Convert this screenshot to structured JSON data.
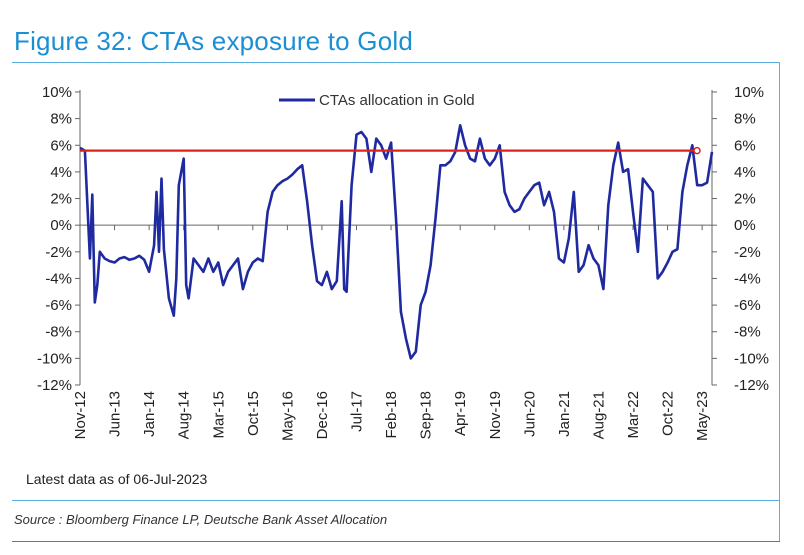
{
  "title": "Figure 32: CTAs exposure to Gold",
  "footnote": "Latest data as of 06-Jul-2023",
  "source": "Source : Bloomberg Finance LP, Deutsche Bank Asset Allocation",
  "colors": {
    "title": "#1b8fd3",
    "series": "#1f2aa0",
    "reference_line": "#e0201b",
    "rule": "#5aaee0"
  },
  "chart_data": {
    "type": "line",
    "ylim": [
      -12,
      10
    ],
    "y_ticks": [
      "10%",
      "8%",
      "6%",
      "4%",
      "2%",
      "0%",
      "-2%",
      "-4%",
      "-6%",
      "-8%",
      "-10%",
      "-12%"
    ],
    "y_tick_values": [
      10,
      8,
      6,
      4,
      2,
      0,
      -2,
      -4,
      -6,
      -8,
      -10,
      -12
    ],
    "y_axis_right": true,
    "x_tick_labels": [
      "Nov-12",
      "Jun-13",
      "Jan-14",
      "Aug-14",
      "Mar-15",
      "Oct-15",
      "May-16",
      "Dec-16",
      "Jul-17",
      "Feb-18",
      "Sep-18",
      "Apr-19",
      "Nov-19",
      "Jun-20",
      "Jan-21",
      "Aug-21",
      "Mar-22",
      "Oct-22",
      "May-23"
    ],
    "x_range": [
      "2012-11",
      "2023-07"
    ],
    "legend": {
      "position": "top-center"
    },
    "grid": false,
    "series": [
      {
        "name": "CTAs allocation in Gold",
        "x": [
          "2012-11",
          "2012-12",
          "2013-01",
          "2013-01",
          "2013-02",
          "2013-02",
          "2013-03",
          "2013-04",
          "2013-05",
          "2013-06",
          "2013-07",
          "2013-08",
          "2013-09",
          "2013-10",
          "2013-11",
          "2013-12",
          "2014-01",
          "2014-02",
          "2014-02",
          "2014-03",
          "2014-03",
          "2014-04",
          "2014-05",
          "2014-06",
          "2014-06",
          "2014-07",
          "2014-08",
          "2014-08",
          "2014-09",
          "2014-10",
          "2014-11",
          "2014-12",
          "2015-01",
          "2015-02",
          "2015-03",
          "2015-04",
          "2015-05",
          "2015-06",
          "2015-07",
          "2015-08",
          "2015-09",
          "2015-10",
          "2015-11",
          "2015-12",
          "2016-01",
          "2016-02",
          "2016-03",
          "2016-04",
          "2016-05",
          "2016-06",
          "2016-07",
          "2016-08",
          "2016-09",
          "2016-10",
          "2016-11",
          "2016-12",
          "2017-01",
          "2017-02",
          "2017-03",
          "2017-04",
          "2017-04",
          "2017-05",
          "2017-06",
          "2017-07",
          "2017-08",
          "2017-09",
          "2017-10",
          "2017-11",
          "2017-12",
          "2018-01",
          "2018-02",
          "2018-03",
          "2018-04",
          "2018-05",
          "2018-06",
          "2018-07",
          "2018-08",
          "2018-09",
          "2018-10",
          "2018-11",
          "2018-12",
          "2019-01",
          "2019-02",
          "2019-03",
          "2019-04",
          "2019-05",
          "2019-06",
          "2019-07",
          "2019-08",
          "2019-09",
          "2019-10",
          "2019-11",
          "2019-12",
          "2020-01",
          "2020-02",
          "2020-03",
          "2020-04",
          "2020-05",
          "2020-06",
          "2020-07",
          "2020-08",
          "2020-09",
          "2020-10",
          "2020-11",
          "2020-12",
          "2021-01",
          "2021-02",
          "2021-03",
          "2021-04",
          "2021-05",
          "2021-06",
          "2021-07",
          "2021-08",
          "2021-09",
          "2021-10",
          "2021-11",
          "2021-12",
          "2022-01",
          "2022-02",
          "2022-03",
          "2022-04",
          "2022-05",
          "2022-06",
          "2022-07",
          "2022-08",
          "2022-09",
          "2022-10",
          "2022-11",
          "2022-12",
          "2023-01",
          "2023-02",
          "2023-03",
          "2023-04",
          "2023-05",
          "2023-06",
          "2023-07"
        ],
        "values": [
          5.8,
          5.6,
          -2.5,
          2.3,
          -5.8,
          -4.5,
          -2.0,
          -2.5,
          -2.7,
          -2.8,
          -2.5,
          -2.4,
          -2.6,
          -2.5,
          -2.3,
          -2.6,
          -3.5,
          -1.5,
          2.5,
          -2.0,
          3.5,
          -1.8,
          -5.5,
          -6.8,
          -4.0,
          3.0,
          5.0,
          -4.5,
          -5.5,
          -2.5,
          -3.0,
          -3.5,
          -2.5,
          -3.5,
          -2.8,
          -4.5,
          -3.5,
          -3.0,
          -2.5,
          -4.8,
          -3.5,
          -2.8,
          -2.5,
          -2.7,
          1.0,
          2.5,
          3.0,
          3.3,
          3.5,
          3.8,
          4.2,
          4.5,
          1.8,
          -1.5,
          -4.2,
          -4.5,
          -3.5,
          -4.8,
          -4.2,
          1.8,
          -4.8,
          -5.0,
          3.0,
          6.8,
          7.0,
          6.5,
          4.0,
          6.5,
          6.0,
          5.0,
          6.2,
          0.5,
          -6.5,
          -8.5,
          -10.0,
          -9.5,
          -6.0,
          -5.0,
          -3.0,
          0.5,
          4.5,
          4.5,
          4.8,
          5.5,
          7.5,
          6.0,
          5.0,
          4.8,
          6.5,
          5.0,
          4.5,
          5.0,
          6.0,
          2.5,
          1.5,
          1.0,
          1.2,
          2.0,
          2.5,
          3.0,
          3.2,
          1.5,
          2.5,
          1.0,
          -2.5,
          -2.8,
          -1.0,
          2.5,
          -3.5,
          -3.0,
          -1.5,
          -2.5,
          -3.0,
          -4.8,
          1.5,
          4.5,
          6.2,
          4.0,
          4.2,
          1.0,
          -2.0,
          3.5,
          3.0,
          2.5,
          -4.0,
          -3.5,
          -2.8,
          -2.0,
          -1.8,
          2.5,
          4.5,
          6.0,
          3.0,
          3.0,
          3.2,
          5.5
        ]
      }
    ],
    "reference_line": {
      "value": 5.6
    },
    "legend_label": "CTAs allocation in Gold"
  }
}
